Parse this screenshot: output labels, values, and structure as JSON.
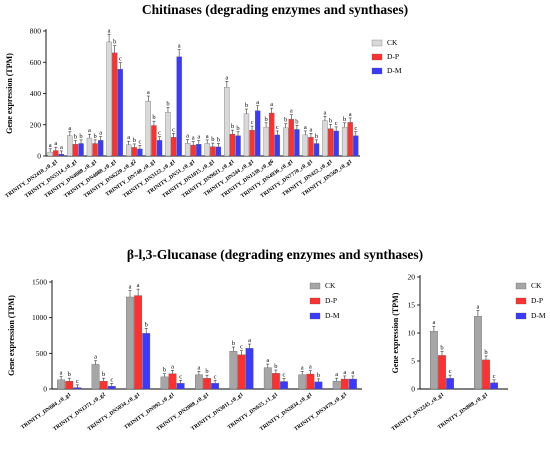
{
  "charts": [
    {
      "title": "Chitinases (degrading enzymes and synthases)",
      "chart_data": {
        "type": "bar",
        "ylabel": "Gene expression (TPM)",
        "ylim": [
          0,
          800
        ],
        "yticks": [
          0,
          200,
          400,
          600,
          800
        ],
        "legend_position": "top-right",
        "series_colors": [
          "#d9d9d9",
          "#ff3030",
          "#3a3aff"
        ],
        "series": [
          {
            "name": "CK",
            "values": [
              25,
              130,
              115,
              730,
              72,
              350,
              280,
              82,
              80,
              440,
              270,
              185,
              180,
              135,
              225,
              185
            ]
          },
          {
            "name": "D-P",
            "values": [
              35,
              75,
              80,
              660,
              55,
              195,
              120,
              70,
              60,
              140,
              165,
              275,
              235,
              120,
              175,
              215
            ]
          },
          {
            "name": "D-M",
            "values": [
              12,
              80,
              100,
              555,
              45,
              100,
              635,
              75,
              58,
              130,
              290,
              135,
              170,
              80,
              160,
              130
            ]
          }
        ],
        "letters": [
          [
            "a",
            "a",
            "a"
          ],
          [
            "a",
            "b",
            "b"
          ],
          [
            "a",
            "b",
            "a"
          ],
          [
            "a",
            "b",
            "c"
          ],
          [
            "a",
            "b",
            "c"
          ],
          [
            "a",
            "b",
            "c"
          ],
          [
            "b",
            "c",
            "a"
          ],
          [
            "a",
            "a",
            "a"
          ],
          [
            "a",
            "b",
            "b"
          ],
          [
            "a",
            "b",
            "b"
          ],
          [
            "b",
            "c",
            "a"
          ],
          [
            "b",
            "a",
            "c"
          ],
          [
            "b",
            "a",
            "b"
          ],
          [
            "a",
            "a",
            "b"
          ],
          [
            "a",
            "b",
            "c"
          ],
          [
            "b",
            "a",
            "c"
          ]
        ],
        "categories": [
          "TRINITY_DN2410_c0_g1",
          "TRINITY_DN5514_c0_g1",
          "TRINITY_DN4688_c0_g1",
          "TRINITY_DN4088_c0_g1",
          "TRINITY_DN6220_c0_g2",
          "TRINITY_DN740_c0_g1",
          "TRINITY_DN3122_c0_g1",
          "TRINITY_DN51_c0_g1",
          "TRINITY_DN1015_c0_g1",
          "TRINITY_DN9621_c0_g1",
          "TRINITY_DN244_c0_g1",
          "TRINITY_DN1538_c0_g6",
          "TRINITY_DN4936_c0_g1",
          "TRINITY_DN7770_c0_g1",
          "TRINITY_DN422_c0_g1",
          "TRINITY_DN569_c0_g1"
        ]
      }
    },
    {
      "title": "β-l,3-Glucanase (degrading enzymes and synthases)",
      "chart_data": {
        "type": "bar",
        "ylabel": "Gene expression (TPM)",
        "ylim": [
          0,
          1500
        ],
        "yticks": [
          0,
          500,
          1000,
          1500
        ],
        "legend_position": "top-right",
        "series_colors": [
          "#a6a6a6",
          "#ff3030",
          "#3a3aff"
        ],
        "series": [
          {
            "name": "CK",
            "values": [
              130,
              345,
              1290,
              170,
              200,
              530,
              300,
              200,
              110
            ]
          },
          {
            "name": "D-P",
            "values": [
              110,
              110,
              1310,
              215,
              150,
              480,
              220,
              210,
              140
            ]
          },
          {
            "name": "D-M",
            "values": [
              20,
              40,
              780,
              80,
              80,
              570,
              105,
              100,
              140
            ]
          }
        ],
        "letters": [
          [
            "a",
            "b",
            "c"
          ],
          [
            "a",
            "b",
            "c"
          ],
          [
            "a",
            "a",
            "b"
          ],
          [
            "b",
            "a",
            "c"
          ],
          [
            "a",
            "b",
            "c"
          ],
          [
            "b",
            "c",
            "a"
          ],
          [
            "a",
            "b",
            "c"
          ],
          [
            "a",
            "a",
            "b"
          ],
          [
            "a",
            "a",
            "a"
          ]
        ],
        "categories": [
          "TRINITY_DN684_c0_g1",
          "TRINITY_DN1371_c0_g2",
          "TRINITY_DN5034_c0_g1",
          "TRINITY_DN992_c0_g1",
          "TRINITY_DN2008_c0_g1",
          "TRINITY_DN3011_c0_g1",
          "TRINITY_DN625_c1_g1",
          "TRINITY_DN2034_c0_g1",
          "TRINITY_DN3479_c0_g3"
        ]
      }
    },
    {
      "title": "",
      "chart_data": {
        "type": "bar",
        "ylabel": "Gene expression (TPM)",
        "ylim": [
          0,
          20
        ],
        "yticks": [
          0,
          5,
          10,
          15,
          20
        ],
        "legend_position": "top-right",
        "series_colors": [
          "#a6a6a6",
          "#ff3030",
          "#3a3aff"
        ],
        "series": [
          {
            "name": "CK",
            "values": [
              10.3,
              13.0
            ]
          },
          {
            "name": "D-P",
            "values": [
              6.0,
              5.2
            ]
          },
          {
            "name": "D-M",
            "values": [
              1.9,
              1.1
            ]
          }
        ],
        "letters": [
          [
            "a",
            "b",
            "c"
          ],
          [
            "a",
            "b",
            "c"
          ]
        ],
        "categories": [
          "TRINITY_DN2245_c0_g1",
          "TRINITY_DN808_c0_g1"
        ]
      }
    }
  ]
}
